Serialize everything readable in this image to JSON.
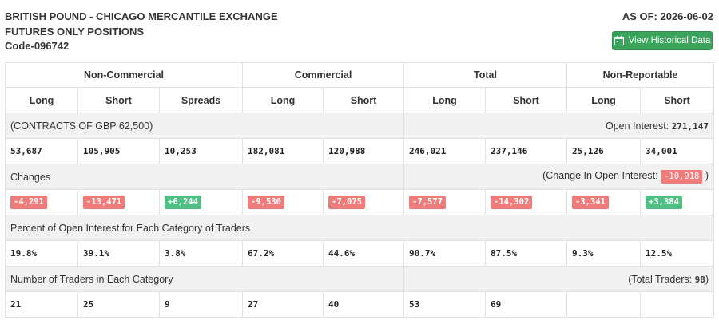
{
  "header": {
    "title_line1": "BRITISH POUND - CHICAGO MERCANTILE EXCHANGE",
    "title_line2": "FUTURES ONLY POSITIONS",
    "code": "Code-096742",
    "as_of": "AS OF: 2026-06-02",
    "history_button": "View Historical Data"
  },
  "colors": {
    "button_green": "#3aa35c",
    "negative": "#f07b7b",
    "positive": "#4fbf84",
    "section_bg": "#f1f1f1"
  },
  "table": {
    "groups": [
      "Non-Commercial",
      "Commercial",
      "Total",
      "Non-Reportable"
    ],
    "columns": [
      "Long",
      "Short",
      "Spreads",
      "Long",
      "Short",
      "Long",
      "Short",
      "Long",
      "Short"
    ],
    "contracts_label": "(CONTRACTS OF GBP 62,500)",
    "open_interest_label": "Open Interest: ",
    "open_interest_value": "271,147",
    "positions": [
      "53,687",
      "105,905",
      "10,253",
      "182,081",
      "120,988",
      "246,021",
      "237,146",
      "25,126",
      "34,001"
    ],
    "changes_label": "Changes",
    "change_oi_label": "(Change In Open Interest: ",
    "change_oi_value": "-10,918",
    "change_oi_close": " )",
    "changes": [
      "-4,291",
      "-13,471",
      "+6,244",
      "-9,530",
      "-7,075",
      "-7,577",
      "-14,302",
      "-3,341",
      "+3,384"
    ],
    "percent_label": "Percent of Open Interest for Each Category of Traders",
    "percents": [
      "19.8%",
      "39.1%",
      "3.8%",
      "67.2%",
      "44.6%",
      "90.7%",
      "87.5%",
      "9.3%",
      "12.5%"
    ],
    "traders_label": "Number of Traders in Each Category",
    "total_traders_label": "(Total Traders: ",
    "total_traders_value": "98",
    "total_traders_close": ")",
    "traders": [
      "21",
      "25",
      "9",
      "27",
      "40",
      "53",
      "69",
      "",
      ""
    ]
  }
}
